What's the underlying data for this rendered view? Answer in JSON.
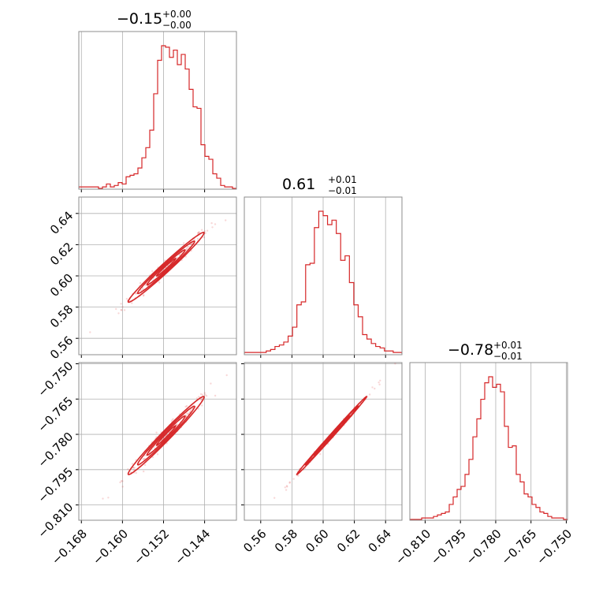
{
  "chart_data": {
    "type": "corner",
    "color": "#d62728",
    "grid": true,
    "parameters": [
      {
        "title": {
          "main": "−0.15",
          "plus": "+0.00",
          "minus": "−0.00"
        },
        "ticks": [
          -0.168,
          -0.16,
          -0.152,
          -0.144
        ],
        "tick_labels": [
          "−0.168",
          "−0.160",
          "−0.152",
          "−0.144"
        ],
        "lim": [
          -0.1685,
          -0.1378
        ]
      },
      {
        "title": {
          "main": "0.61",
          "plus": "+0.01",
          "minus": "−0.01"
        },
        "ticks": [
          0.56,
          0.58,
          0.6,
          0.62,
          0.64
        ],
        "tick_labels": [
          "0.56",
          "0.58",
          "0.60",
          "0.62",
          "0.64"
        ],
        "lim": [
          0.5495,
          0.6505
        ]
      },
      {
        "title": {
          "main": "−0.78",
          "plus": "+0.01",
          "minus": "−0.01"
        },
        "ticks": [
          -0.81,
          -0.795,
          -0.78,
          -0.765,
          -0.75
        ],
        "tick_labels": [
          "−0.810",
          "−0.795",
          "−0.780",
          "−0.765",
          "−0.750"
        ],
        "lim": [
          -0.8165,
          -0.7495
        ]
      }
    ],
    "histograms": [
      {
        "bin_edges_range": [
          -0.1685,
          -0.1378
        ],
        "counts": [
          1,
          1,
          1,
          1,
          1,
          0,
          1,
          3,
          1,
          2,
          4,
          3,
          8,
          9,
          10,
          14,
          21,
          28,
          40,
          65,
          88,
          98,
          97,
          90,
          95,
          85,
          92,
          82,
          68,
          56,
          55,
          30,
          22,
          20,
          10,
          7,
          2,
          1,
          1,
          0
        ]
      },
      {
        "bin_edges_range": [
          0.5495,
          0.6505
        ],
        "counts": [
          1,
          1,
          1,
          1,
          1,
          2,
          3,
          5,
          6,
          8,
          12,
          18,
          33,
          35,
          60,
          61,
          85,
          96,
          93,
          87,
          90,
          81,
          63,
          66,
          48,
          33,
          25,
          13,
          10,
          7,
          5,
          4,
          2,
          2,
          1,
          1
        ]
      },
      {
        "bin_edges_range": [
          -0.8165,
          -0.7495
        ],
        "counts": [
          0,
          0,
          0,
          1,
          1,
          1,
          2,
          3,
          4,
          5,
          10,
          15,
          20,
          22,
          30,
          40,
          55,
          67,
          80,
          91,
          95,
          88,
          90,
          85,
          62,
          48,
          49,
          30,
          25,
          17,
          15,
          10,
          8,
          5,
          4,
          2,
          1,
          1,
          1,
          0
        ]
      }
    ],
    "pairs": [
      {
        "x_param": 0,
        "y_param": 1,
        "center": [
          -0.1515,
          0.6055
        ],
        "x_sd": 0.0037,
        "y_sd": 0.0112,
        "corr": 0.985
      },
      {
        "x_param": 0,
        "y_param": 2,
        "center": [
          -0.1515,
          -0.7805
        ],
        "x_sd": 0.0037,
        "y_sd": 0.0083,
        "corr": 0.985
      },
      {
        "x_param": 1,
        "y_param": 2,
        "center": [
          0.6055,
          -0.7805
        ],
        "x_sd": 0.0112,
        "y_sd": 0.0083,
        "corr": 0.998
      }
    ]
  }
}
